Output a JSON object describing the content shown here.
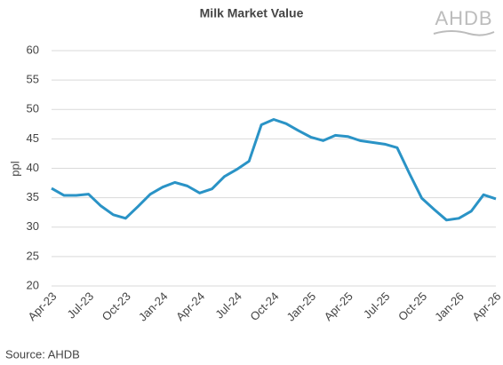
{
  "chart_data": {
    "type": "line",
    "title": "Milk Market Value",
    "y_label": "ppl",
    "source": "Source: AHDB",
    "logo": "AHDB",
    "categories": [
      "Apr-23",
      null,
      null,
      "Jul-23",
      null,
      null,
      "Oct-23",
      null,
      null,
      "Jan-24",
      null,
      null,
      "Apr-24",
      null,
      null,
      "Jul-24",
      null,
      null,
      "Oct-24",
      null,
      null,
      "Jan-25",
      null,
      null,
      "Apr-25",
      null,
      null,
      "Jul-25",
      null,
      null,
      "Oct-25",
      null,
      null,
      "Jan-26",
      null,
      null,
      "Apr-26"
    ],
    "series": [
      {
        "name": "Milk Market Value",
        "color": "#2a93c6",
        "values": [
          36.6,
          35.4,
          35.4,
          35.6,
          33.6,
          32.1,
          31.5,
          33.5,
          35.6,
          36.8,
          37.6,
          37.0,
          35.8,
          36.5,
          38.6,
          39.8,
          41.2,
          47.4,
          48.3,
          47.6,
          46.4,
          45.3,
          44.7,
          45.6,
          45.4,
          44.7,
          44.4,
          44.1,
          43.5,
          39.1,
          34.9,
          33.0,
          31.2,
          31.5,
          32.7,
          35.5,
          34.8
        ]
      }
    ],
    "ylim": [
      20,
      60
    ],
    "yticks": [
      20,
      25,
      30,
      35,
      40,
      45,
      50,
      55,
      60
    ],
    "grid": true
  }
}
